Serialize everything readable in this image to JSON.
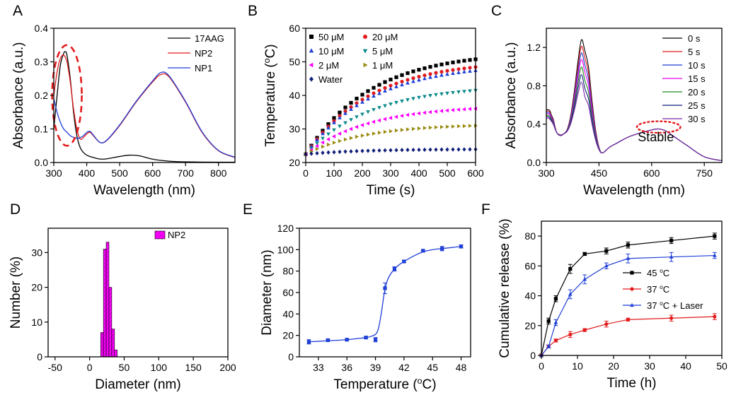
{
  "colors": {
    "black": "#000000",
    "red": "#e31a1c",
    "blue": "#1f3fd6",
    "cyan": "#0b8a8a",
    "magenta": "#ff00ff",
    "olive": "#9a8a10",
    "navy": "#101f7a",
    "pink": "#e0e",
    "green": "#1a8a1a",
    "purple": "#7a2aa8"
  },
  "chart_data": [
    {
      "id": "A",
      "type": "line",
      "panel_label": "A",
      "xlabel": "Wavelength (nm)",
      "ylabel": "Absorbance (a.u.)",
      "xlim": [
        300,
        850
      ],
      "ylim": [
        0,
        0.4
      ],
      "xticks": [
        300,
        400,
        500,
        600,
        700,
        800
      ],
      "yticks": [
        0,
        0.1,
        0.2,
        0.3,
        0.4
      ],
      "xtick_labels": [
        "300",
        "400",
        "500",
        "600",
        "700",
        "800"
      ],
      "ytick_labels": [
        "0.0",
        "0.1",
        "0.2",
        "0.3",
        "0.4"
      ],
      "legend_position": "top-right",
      "series": [
        {
          "name": "17AAG",
          "color": "#000000",
          "x": [
            300,
            310,
            320,
            330,
            335,
            340,
            350,
            360,
            370,
            380,
            390,
            400,
            420,
            450,
            500,
            530,
            560,
            600,
            650,
            700,
            800,
            850
          ],
          "y": [
            0.1,
            0.2,
            0.29,
            0.325,
            0.33,
            0.32,
            0.25,
            0.15,
            0.08,
            0.045,
            0.03,
            0.022,
            0.015,
            0.01,
            0.018,
            0.022,
            0.02,
            0.01,
            0.004,
            0.002,
            0.001,
            0.001
          ]
        },
        {
          "name": "NP2",
          "color": "#e31a1c",
          "x": [
            300,
            310,
            320,
            330,
            340,
            350,
            360,
            370,
            380,
            390,
            400,
            410,
            420,
            440,
            460,
            500,
            550,
            600,
            625,
            650,
            700,
            750,
            800,
            850
          ],
          "y": [
            0.2,
            0.27,
            0.31,
            0.32,
            0.3,
            0.24,
            0.16,
            0.1,
            0.07,
            0.075,
            0.085,
            0.09,
            0.08,
            0.06,
            0.065,
            0.11,
            0.18,
            0.24,
            0.262,
            0.255,
            0.18,
            0.09,
            0.035,
            0.015
          ]
        },
        {
          "name": "NP1",
          "color": "#1f3fd6",
          "x": [
            300,
            310,
            320,
            330,
            340,
            350,
            360,
            370,
            380,
            390,
            400,
            410,
            420,
            440,
            460,
            500,
            550,
            600,
            625,
            650,
            700,
            750,
            800,
            850
          ],
          "y": [
            0.19,
            0.15,
            0.12,
            0.1,
            0.09,
            0.08,
            0.075,
            0.072,
            0.074,
            0.08,
            0.09,
            0.093,
            0.082,
            0.06,
            0.066,
            0.112,
            0.182,
            0.243,
            0.268,
            0.258,
            0.182,
            0.092,
            0.036,
            0.016
          ]
        }
      ],
      "annotation": {
        "type": "dashed-ellipse",
        "color": "#e31a1c",
        "cx": 340,
        "cy": 0.2,
        "rx": 45,
        "ry": 0.15
      }
    },
    {
      "id": "B",
      "type": "scatter",
      "panel_label": "B",
      "xlabel": "Time (s)",
      "ylabel": "Temperature (oC)",
      "ylabel_parts": [
        "Temperature (",
        "o",
        "C)"
      ],
      "xlim": [
        0,
        600
      ],
      "ylim": [
        20,
        60
      ],
      "xticks": [
        0,
        100,
        200,
        300,
        400,
        500,
        600
      ],
      "yticks": [
        20,
        30,
        40,
        50,
        60
      ],
      "xtick_labels": [
        "0",
        "100",
        "200",
        "300",
        "400",
        "500",
        "600"
      ],
      "ytick_labels": [
        "20",
        "30",
        "40",
        "50",
        "60"
      ],
      "legend_position": "top-left",
      "series": [
        {
          "name": "50 μM",
          "color": "#000000",
          "marker": "square",
          "plateau": 53,
          "start": 22.5,
          "tau": 230
        },
        {
          "name": "20 μM",
          "color": "#e31a1c",
          "marker": "circle",
          "plateau": 50.5,
          "start": 22.5,
          "tau": 230
        },
        {
          "name": "10 μM",
          "color": "#1f3fd6",
          "marker": "triangle-up",
          "plateau": 49.5,
          "start": 22.5,
          "tau": 235
        },
        {
          "name": "5  μM",
          "color": "#0b8a8a",
          "marker": "triangle-down",
          "plateau": 43,
          "start": 22.5,
          "tau": 230
        },
        {
          "name": "2  μM",
          "color": "#ff00ff",
          "marker": "triangle-left",
          "plateau": 37,
          "start": 22.5,
          "tau": 220
        },
        {
          "name": "1  μM",
          "color": "#9a8a10",
          "marker": "triangle-right",
          "plateau": 31.5,
          "start": 22.5,
          "tau": 210
        },
        {
          "name": "Water",
          "color": "#101f7a",
          "marker": "diamond",
          "plateau": 24,
          "start": 22.5,
          "tau": 200
        }
      ],
      "x_sample_step": 20
    },
    {
      "id": "C",
      "type": "line",
      "panel_label": "C",
      "xlabel": "Wavelength (nm)",
      "ylabel": "Absorbance (a.u.)",
      "xlim": [
        300,
        800
      ],
      "ylim": [
        0,
        1.4
      ],
      "xticks": [
        300,
        450,
        600,
        750
      ],
      "yticks": [
        0,
        0.4,
        0.8,
        1.2
      ],
      "xtick_labels": [
        "300",
        "450",
        "600",
        "750"
      ],
      "ytick_labels": [
        "0.0",
        "0.4",
        "0.8",
        "1.2"
      ],
      "legend_position": "top-right",
      "series": [
        {
          "name": "0 s",
          "color": "#000000",
          "scale": 1.0
        },
        {
          "name": "5 s",
          "color": "#e31a1c",
          "scale": 0.93
        },
        {
          "name": "10 s",
          "color": "#1f3fd6",
          "scale": 0.86
        },
        {
          "name": "15 s",
          "color": "#e0e",
          "scale": 0.79
        },
        {
          "name": "20 s",
          "color": "#1a8a1a",
          "scale": 0.71
        },
        {
          "name": "25 s",
          "color": "#101f7a",
          "scale": 0.63
        },
        {
          "name": "30 s",
          "color": "#7a2aa8",
          "scale": 0.55
        }
      ],
      "base_curve": {
        "x": [
          300,
          305,
          310,
          315,
          320,
          325,
          330,
          340,
          350,
          360,
          370,
          380,
          390,
          400,
          410,
          420,
          430,
          440,
          450,
          460,
          480,
          500,
          530,
          560,
          600,
          620,
          640,
          660,
          700,
          750,
          800
        ],
        "variable": [
          0.2,
          0.19,
          0.2,
          0.14,
          0.12,
          0.05,
          0.0,
          -0.02,
          0.0,
          0.05,
          0.2,
          0.45,
          0.75,
          0.98,
          1.06,
          0.9,
          0.55,
          0.25,
          0.06,
          0.0,
          0.0,
          0.0,
          0.0,
          0.0,
          0.0,
          0.0,
          0.0,
          0.0,
          0.0,
          0.0,
          0.0
        ],
        "fixed": [
          0.35,
          0.36,
          0.34,
          0.35,
          0.33,
          0.32,
          0.31,
          0.3,
          0.3,
          0.3,
          0.3,
          0.3,
          0.3,
          0.3,
          0.1,
          0.1,
          0.1,
          0.1,
          0.1,
          0.1,
          0.16,
          0.2,
          0.26,
          0.3,
          0.34,
          0.35,
          0.33,
          0.28,
          0.18,
          0.06,
          0.02
        ]
      },
      "annotation_text": "Stable",
      "annotation": {
        "type": "dotted-ellipse",
        "color": "#e31a1c",
        "cx": 620,
        "cy": 0.37,
        "rx": 62,
        "ry": 0.06
      }
    },
    {
      "id": "D",
      "type": "bar",
      "panel_label": "D",
      "xlabel": "Diameter (nm)",
      "ylabel": "Number (%)",
      "xlim": [
        -60,
        200
      ],
      "ylim": [
        0,
        37
      ],
      "xticks": [
        -50,
        0,
        50,
        100,
        150,
        200
      ],
      "yticks": [
        0,
        10,
        20,
        30
      ],
      "xtick_labels": [
        "-50",
        "0",
        "50",
        "100",
        "150",
        "200"
      ],
      "ytick_labels": [
        "0",
        "10",
        "20",
        "30"
      ],
      "legend_position": "top-right",
      "series": [
        {
          "name": "NP2",
          "color": "#ff00ff"
        }
      ],
      "bars": [
        {
          "x0": 16,
          "x1": 20,
          "value": 7
        },
        {
          "x0": 20,
          "x1": 24,
          "value": 31
        },
        {
          "x0": 24,
          "x1": 28,
          "value": 33
        },
        {
          "x0": 28,
          "x1": 32,
          "value": 20
        },
        {
          "x0": 32,
          "x1": 36,
          "value": 8
        },
        {
          "x0": 36,
          "x1": 40,
          "value": 2
        }
      ]
    },
    {
      "id": "E",
      "type": "line",
      "panel_label": "E",
      "xlabel": "Temperature (oC)",
      "xlabel_parts": [
        "Temperature (",
        "o",
        "C)"
      ],
      "ylabel": "Diameter (nm)",
      "xlim": [
        31,
        49
      ],
      "ylim": [
        0,
        120
      ],
      "xticks": [
        33,
        36,
        39,
        42,
        45,
        48
      ],
      "yticks": [
        0,
        20,
        40,
        60,
        80,
        100,
        120
      ],
      "xtick_labels": [
        "33",
        "36",
        "39",
        "42",
        "45",
        "48"
      ],
      "ytick_labels": [
        "0",
        "20",
        "40",
        "60",
        "80",
        "100",
        "120"
      ],
      "series": [
        {
          "name": "",
          "color": "#1f3fd6",
          "x": [
            32,
            34,
            36,
            38,
            39,
            40,
            41,
            42,
            44,
            46,
            48
          ],
          "y": [
            14,
            15.5,
            16,
            18,
            16,
            64,
            82,
            89,
            99,
            101,
            103
          ],
          "err": [
            2,
            1,
            1,
            1,
            2,
            5,
            2,
            1,
            1,
            2,
            1.5
          ]
        }
      ],
      "fit": {
        "x": [
          32,
          34,
          36,
          37,
          38,
          38.5,
          39,
          39.3,
          39.6,
          39.9,
          40.2,
          40.5,
          41,
          41.5,
          42,
          43,
          44,
          45,
          46,
          47,
          48
        ],
        "y": [
          14,
          15,
          16,
          17,
          18,
          19,
          21,
          26,
          40,
          58,
          70,
          76,
          82,
          86,
          89,
          94,
          98,
          100,
          101,
          102,
          103
        ]
      }
    },
    {
      "id": "F",
      "type": "line",
      "panel_label": "F",
      "xlabel": "Time (h)",
      "ylabel": "Cumulative release (%)",
      "xlim": [
        0,
        50
      ],
      "ylim": [
        0,
        90
      ],
      "xticks": [
        0,
        10,
        20,
        30,
        40,
        50
      ],
      "yticks": [
        0,
        20,
        40,
        60,
        80
      ],
      "xtick_labels": [
        "0",
        "10",
        "20",
        "30",
        "40",
        "50"
      ],
      "ytick_labels": [
        "0",
        "20",
        "40",
        "60",
        "80"
      ],
      "legend_position": "center-right",
      "series": [
        {
          "name": "45 ",
          "unit_parts": [
            "45 ",
            "o",
            "C"
          ],
          "color": "#000000",
          "marker": "square",
          "x": [
            0,
            2,
            4,
            8,
            12,
            18,
            24,
            36,
            48
          ],
          "y": [
            0,
            23,
            38,
            58,
            68,
            70,
            74,
            77,
            80
          ],
          "err": [
            0,
            2,
            2,
            3,
            1,
            2,
            2,
            2,
            2
          ]
        },
        {
          "name": "37 ",
          "unit_parts": [
            "37 ",
            "o",
            "C"
          ],
          "color": "#e31a1c",
          "marker": "circle",
          "x": [
            0,
            2,
            4,
            8,
            12,
            18,
            24,
            36,
            48
          ],
          "y": [
            0,
            6,
            10,
            14,
            17,
            21,
            24,
            25,
            26
          ],
          "err": [
            0,
            1,
            1,
            2,
            1,
            2,
            1,
            2,
            2
          ]
        },
        {
          "name": "37 ",
          "unit_parts": [
            "37 ",
            "o",
            "C + Laser"
          ],
          "color": "#1f3fd6",
          "marker": "triangle-up",
          "x": [
            0,
            2,
            4,
            8,
            12,
            18,
            24,
            36,
            48
          ],
          "y": [
            0,
            6,
            22,
            41,
            51,
            60,
            65,
            66,
            67
          ],
          "err": [
            0,
            1,
            2,
            3,
            3,
            2,
            3,
            3,
            2
          ]
        }
      ]
    }
  ]
}
